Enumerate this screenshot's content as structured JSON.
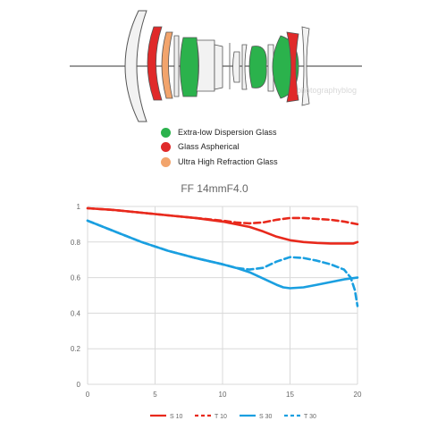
{
  "lens_legend": [
    {
      "label": "Extra-low Dispersion Glass",
      "color": "#2bb24c"
    },
    {
      "label": "Glass Aspherical",
      "color": "#e02a2a"
    },
    {
      "label": "Ultra High Refraction Glass",
      "color": "#f2a46c"
    }
  ],
  "watermark": "photographyblog",
  "chart_data": {
    "type": "line",
    "title": "FF 14mmF4.0",
    "xlabel": "",
    "ylabel": "",
    "xlim": [
      0,
      20
    ],
    "ylim": [
      0,
      1
    ],
    "xticks": [
      0,
      5,
      10,
      15,
      20
    ],
    "xtick_labels": [
      "0",
      "5",
      "10",
      "15",
      "20"
    ],
    "yticks": [
      0,
      0.2,
      0.4,
      0.6,
      0.8,
      1
    ],
    "ytick_labels": [
      "0",
      "0.2",
      "0.4",
      "0.6",
      "0.8",
      "1"
    ],
    "grid": true,
    "legend_position": "bottom",
    "series": [
      {
        "name": "S 10",
        "color": "#e8291c",
        "dash": false,
        "x": [
          0,
          2,
          4,
          6,
          8,
          10,
          11,
          12,
          13,
          14,
          15,
          16,
          17,
          18,
          19,
          19.7,
          20
        ],
        "y": [
          0.99,
          0.98,
          0.965,
          0.95,
          0.935,
          0.915,
          0.9,
          0.885,
          0.86,
          0.83,
          0.81,
          0.8,
          0.795,
          0.792,
          0.792,
          0.792,
          0.8
        ]
      },
      {
        "name": "T 10",
        "color": "#e8291c",
        "dash": true,
        "x": [
          0,
          2,
          4,
          6,
          8,
          10,
          11,
          12,
          13,
          14,
          15,
          16,
          17,
          18,
          19,
          20
        ],
        "y": [
          0.99,
          0.98,
          0.965,
          0.95,
          0.935,
          0.92,
          0.91,
          0.905,
          0.91,
          0.925,
          0.935,
          0.935,
          0.93,
          0.925,
          0.915,
          0.9
        ]
      },
      {
        "name": "S 30",
        "color": "#1a9fe0",
        "dash": false,
        "x": [
          0,
          2,
          4,
          6,
          8,
          10,
          11,
          12,
          13,
          14,
          14.5,
          15,
          16,
          17,
          18,
          19,
          20
        ],
        "y": [
          0.92,
          0.86,
          0.8,
          0.75,
          0.71,
          0.675,
          0.655,
          0.63,
          0.595,
          0.56,
          0.545,
          0.54,
          0.545,
          0.56,
          0.575,
          0.59,
          0.6
        ]
      },
      {
        "name": "T 30",
        "color": "#1a9fe0",
        "dash": true,
        "x": [
          0,
          2,
          4,
          6,
          8,
          10,
          11,
          12,
          13,
          14,
          15,
          16,
          17,
          18,
          19,
          19.5,
          19.8,
          20
        ],
        "y": [
          0.92,
          0.86,
          0.8,
          0.75,
          0.71,
          0.675,
          0.655,
          0.645,
          0.655,
          0.69,
          0.715,
          0.71,
          0.695,
          0.675,
          0.645,
          0.6,
          0.53,
          0.44
        ]
      }
    ]
  }
}
